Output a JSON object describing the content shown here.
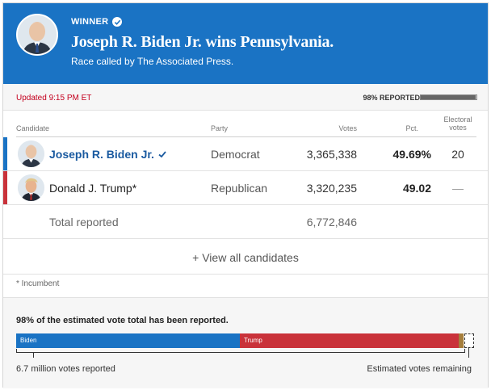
{
  "banner": {
    "winner_label": "WINNER",
    "headline": "Joseph R. Biden Jr. wins Pennsylvania.",
    "subline": "Race called by The Associated Press.",
    "color": "#1a73c4"
  },
  "status": {
    "updated": "Updated 9:15 PM ET",
    "reported_label": "98% REPORTED",
    "reported_fraction": 0.98
  },
  "table": {
    "headers": {
      "candidate": "Candidate",
      "party": "Party",
      "votes": "Votes",
      "pct": "Pct.",
      "electoral": "Electoral votes"
    },
    "rows": [
      {
        "name": "Joseph R. Biden Jr.",
        "party": "Democrat",
        "votes": "3,365,338",
        "pct": "49.69%",
        "electoral": "20",
        "color": "#1a73c4",
        "winner": true
      },
      {
        "name": "Donald J. Trump*",
        "party": "Republican",
        "votes": "3,320,235",
        "pct": "49.02",
        "electoral": "—",
        "color": "#c9323a",
        "winner": false
      }
    ],
    "total_label": "Total reported",
    "total_votes": "6,772,846",
    "view_all": "+ View all candidates"
  },
  "footnote": "* Incumbent",
  "estimate": {
    "title": "98% of the estimated vote total has been reported.",
    "bar": [
      {
        "name": "Biden",
        "fraction": 0.49
      },
      {
        "name": "Trump",
        "fraction": 0.48
      },
      {
        "name": "",
        "fraction": 0.01
      }
    ],
    "left_caption": "6.7 million votes reported",
    "right_caption": "Estimated votes remaining"
  }
}
